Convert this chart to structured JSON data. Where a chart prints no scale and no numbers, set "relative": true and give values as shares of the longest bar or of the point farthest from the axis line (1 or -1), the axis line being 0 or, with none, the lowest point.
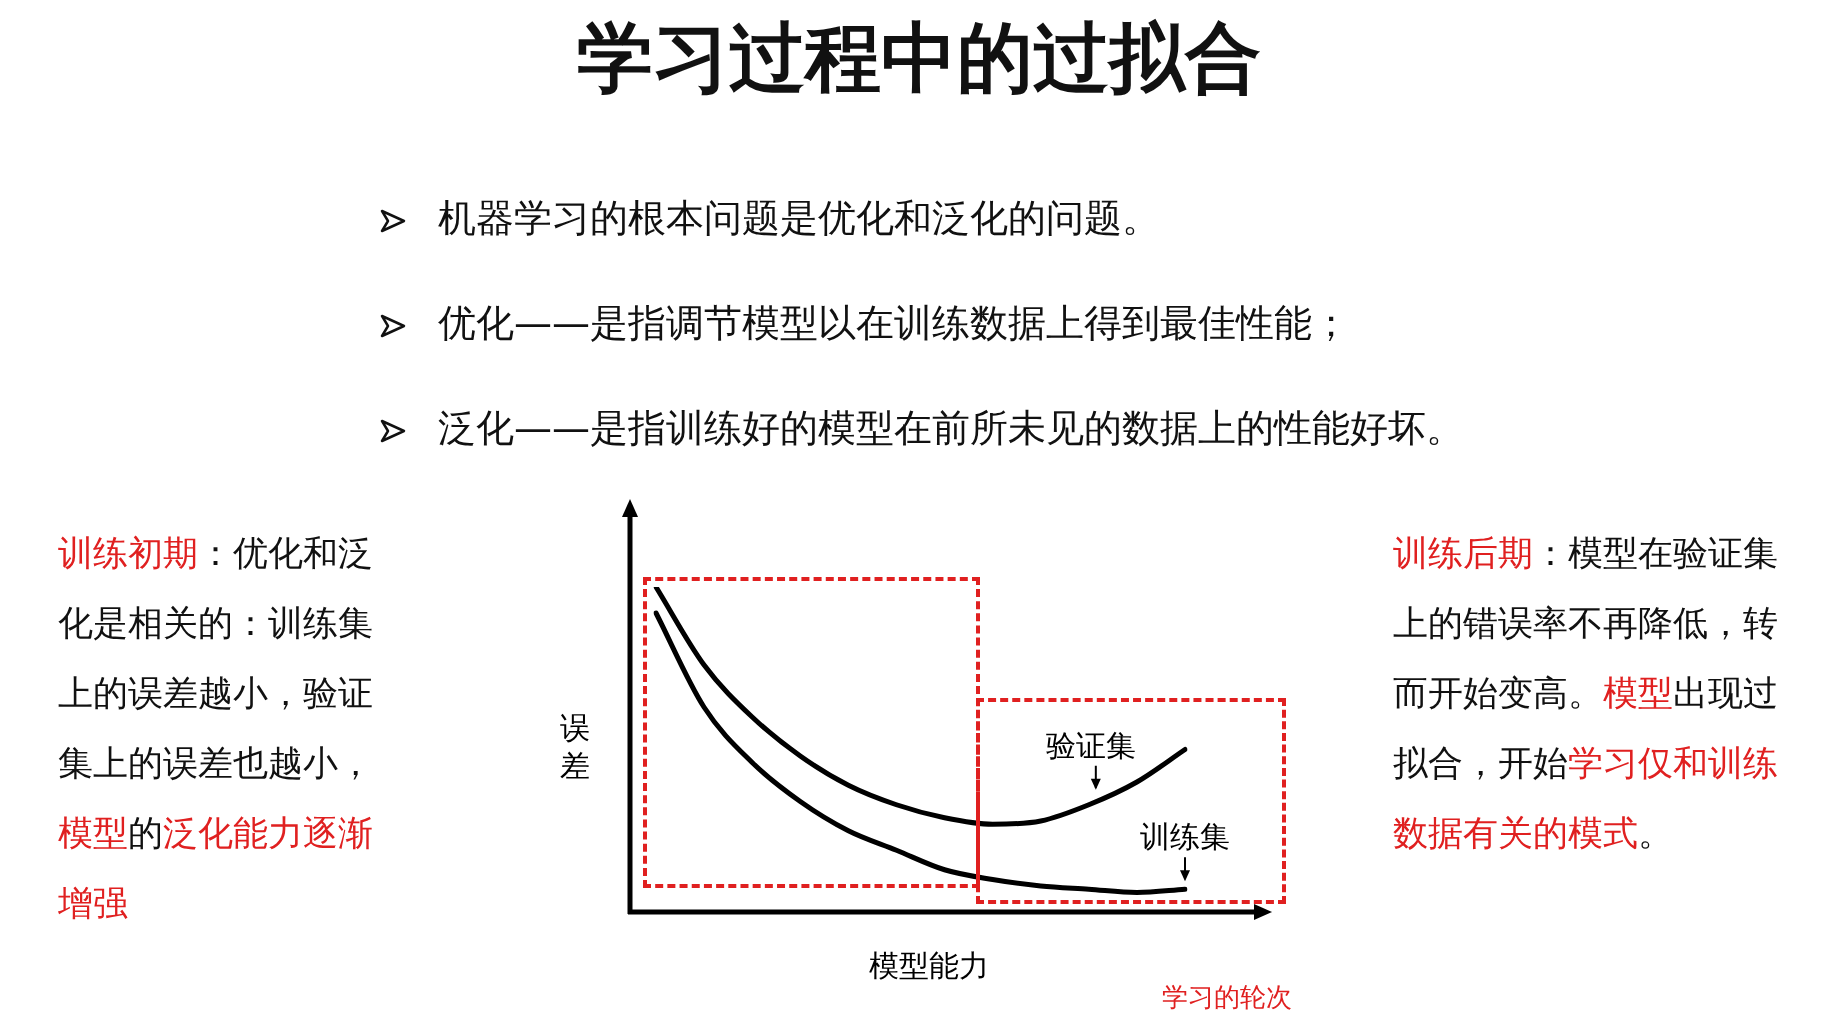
{
  "chart_data": {
    "type": "line",
    "title": "学习过程中的过拟合",
    "xlabel": "模型能力",
    "ylabel": "误差",
    "relative": true,
    "legend": false,
    "marker": "none",
    "line_style": "solid",
    "categories": [
      null,
      null,
      null,
      null,
      null,
      null,
      null,
      null,
      null,
      null,
      null,
      null
    ],
    "series": [
      {
        "name": "验证集",
        "color": "#000000",
        "values": [
          1,
          0.76,
          0.6,
          0.48,
          0.39,
          0.33,
          0.29,
          0.27,
          0.28,
          0.33,
          0.4,
          0.5
        ]
      },
      {
        "name": "训练集",
        "color": "#000000",
        "values": [
          0.92,
          0.63,
          0.46,
          0.34,
          0.25,
          0.19,
          0.13,
          0.1,
          0.08,
          0.07,
          0.06,
          0.07
        ]
      }
    ],
    "annotations": [
      "机器学习的根本问题是优化和泛化的问题。",
      "优化——是指调节模型以在训练数据上得到最佳性能；",
      "泛化——是指训练好的模型在前所未见的数据上的性能好坏。",
      "训练初期",
      "：优化和泛化是相关的：训练集上的误差越小，验证集上的误差也越小，",
      "模型",
      "的",
      "泛化能力逐渐增强",
      "训练后期",
      "：模型在验证集上的错误率不再降低，转而开始变高。",
      "模型",
      "出现过拟合，开始",
      "学习仅和训练数据有关的模式",
      "。",
      "学习的轮次"
    ]
  }
}
